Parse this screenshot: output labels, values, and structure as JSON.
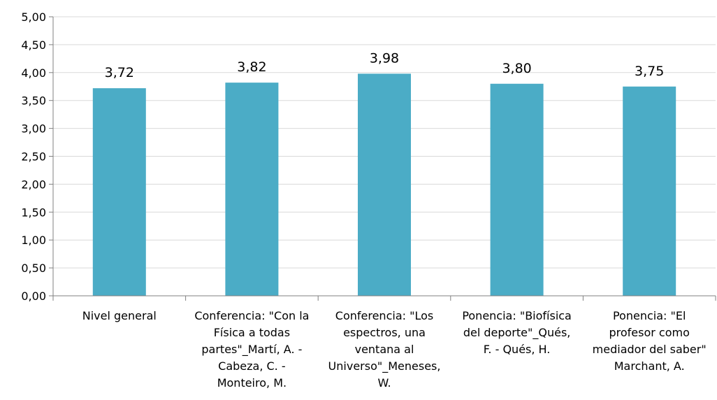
{
  "chart_data": {
    "type": "bar",
    "title": "",
    "xlabel": "",
    "ylabel": "",
    "ylim": [
      0,
      5
    ],
    "ytick_step": 0.5,
    "ytick_labels": [
      "0,00",
      "0,50",
      "1,00",
      "1,50",
      "2,00",
      "2,50",
      "3,00",
      "3,50",
      "4,00",
      "4,50",
      "5,00"
    ],
    "grid": true,
    "legend": "none",
    "bar_color": "#4BACC6",
    "grid_color": "#D9D9D9",
    "axis_color": "#808080",
    "categories": [
      [
        "Nivel general"
      ],
      [
        "Conferencia: \"Con la",
        "Física a todas",
        "partes\"_Martí, A. -",
        "Cabeza, C. -",
        "Monteiro, M."
      ],
      [
        "Conferencia: \"Los",
        "espectros, una",
        "ventana al",
        "Universo\"_Meneses,",
        "W."
      ],
      [
        "Ponencia: \"Biofísica",
        "del deporte\"_Qués,",
        "F. - Qués, H."
      ],
      [
        "Ponencia: \"El",
        "profesor como",
        "mediador del saber\"",
        "Marchant, A."
      ]
    ],
    "values": [
      3.72,
      3.82,
      3.98,
      3.8,
      3.75
    ],
    "value_labels": [
      "3,72",
      "3,82",
      "3,98",
      "3,80",
      "3,75"
    ]
  }
}
